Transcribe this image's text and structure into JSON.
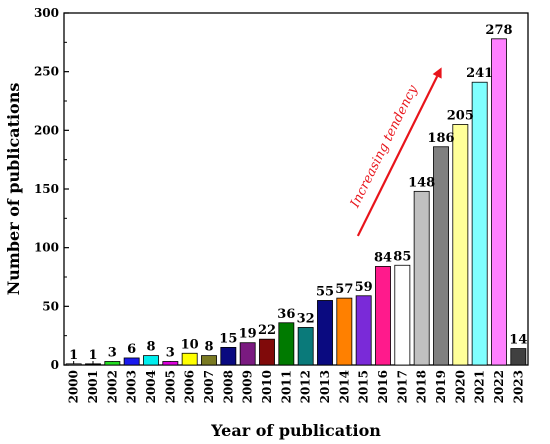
{
  "chart_data": {
    "type": "bar",
    "xlabel": "Year of publication",
    "ylabel": "Number of publications",
    "categories": [
      "2000",
      "2001",
      "2002",
      "2003",
      "2004",
      "2005",
      "2006",
      "2007",
      "2008",
      "2009",
      "2010",
      "2011",
      "2012",
      "2013",
      "2014",
      "2015",
      "2016",
      "2017",
      "2018",
      "2019",
      "2020",
      "2021",
      "2022",
      "2023"
    ],
    "values": [
      1,
      1,
      3,
      6,
      8,
      3,
      10,
      8,
      15,
      19,
      22,
      36,
      32,
      55,
      57,
      59,
      84,
      85,
      148,
      186,
      205,
      241,
      278,
      14
    ],
    "colors": [
      "#808080",
      "#000000",
      "#22dd22",
      "#1a1aee",
      "#00eeee",
      "#dd00dd",
      "#ffff00",
      "#7a7a22",
      "#0a0a80",
      "#7a1a80",
      "#800a0a",
      "#007a00",
      "#0a7a7a",
      "#0a0a80",
      "#ff8000",
      "#7a2ad8",
      "#ff1a8c",
      "#ffffff",
      "#c0c0c0",
      "#808080",
      "#ffff99",
      "#80ffff",
      "#ff80ff",
      "#404040"
    ],
    "ylim": [
      0,
      300
    ],
    "yticks": [
      0,
      50,
      100,
      150,
      200,
      250,
      300
    ],
    "annotation": "Increasing tendency",
    "annotation_color": "#e8141b"
  }
}
